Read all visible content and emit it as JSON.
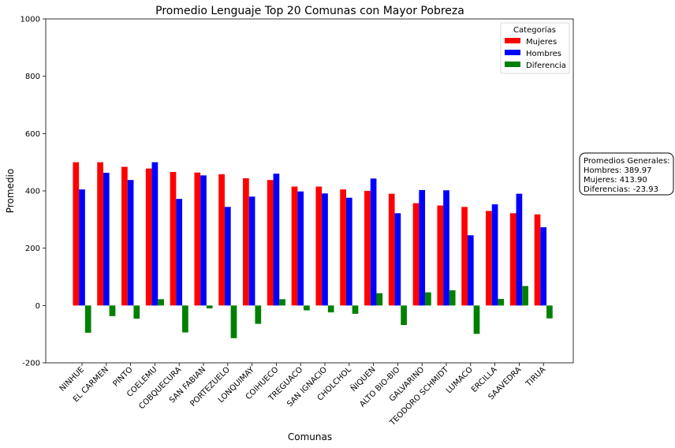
{
  "chart_data": {
    "type": "bar",
    "title": "Promedio Lenguaje Top 20 Comunas con Mayor Pobreza",
    "xlabel": "Comunas",
    "ylabel": "Promedio",
    "ylim": [
      -200,
      1000
    ],
    "yticks": [
      -200,
      0,
      200,
      400,
      600,
      800,
      1000
    ],
    "grid": false,
    "legend_placement": "top-right",
    "legend_title": "Categorías",
    "categories": [
      "NINHUE",
      "EL CARMEN",
      "PINTO",
      "COELEMU",
      "COBQUECURA",
      "SAN FABIAN",
      "PORTEZUELO",
      "LONQUIMAY",
      "COIHUECO",
      "TREGUACO",
      "SAN IGNACIO",
      "CHOLCHOL",
      "ÑIQUEN",
      "ALTO BIO-BIO",
      "GALVARINO",
      "TEODORO SCHMIDT",
      "LUMACO",
      "ERCILLA",
      "SAAVEDRA",
      "TIRUA"
    ],
    "series": [
      {
        "name": "Mujeres",
        "color": "#ff0000",
        "values": [
          500,
          500,
          484,
          478,
          466,
          464,
          458,
          444,
          438,
          415,
          415,
          405,
          400,
          390,
          357,
          349,
          344,
          330,
          322,
          318
        ]
      },
      {
        "name": "Hombres",
        "color": "#0000ff",
        "values": [
          405,
          463,
          438,
          500,
          372,
          454,
          344,
          380,
          460,
          398,
          391,
          376,
          443,
          322,
          403,
          402,
          245,
          353,
          390,
          273
        ]
      },
      {
        "name": "Diferencia",
        "color": "#008000",
        "values": [
          -95,
          -37,
          -46,
          22,
          -94,
          -10,
          -114,
          -64,
          22,
          -17,
          -24,
          -29,
          43,
          -68,
          46,
          53,
          -99,
          23,
          68,
          -45
        ]
      }
    ],
    "annotation": {
      "title": "Promedios Generales:",
      "lines": [
        "Hombres: 389.97",
        "Mujeres: 413.90",
        "Diferencias: -23.93"
      ]
    }
  }
}
